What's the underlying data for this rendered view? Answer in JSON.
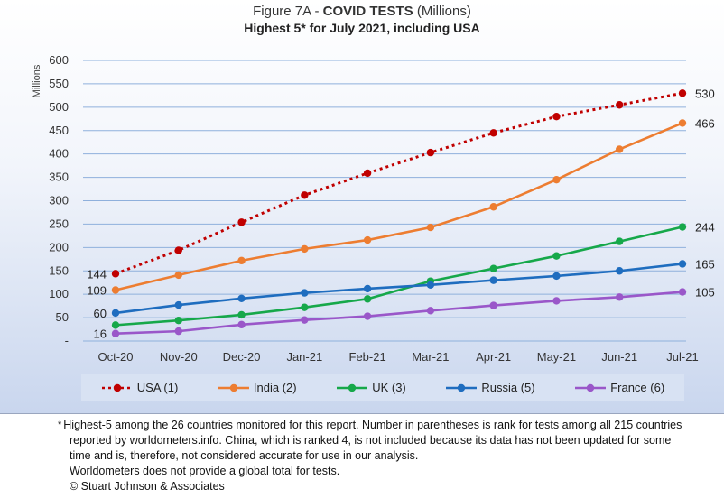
{
  "title": {
    "prefix": "Figure 7A - ",
    "main": "COVID TESTS",
    "suffix": " (Millions)",
    "subtitle": "Highest 5* for July 2021, including USA"
  },
  "chart_data": {
    "type": "line",
    "categories": [
      "Oct-20",
      "Nov-20",
      "Dec-20",
      "Jan-21",
      "Feb-21",
      "Mar-21",
      "Apr-21",
      "May-21",
      "Jun-21",
      "Jul-21"
    ],
    "ylabel": "Millions",
    "ylim": [
      0,
      600
    ],
    "yticks": [
      "-",
      "50",
      "100",
      "150",
      "200",
      "250",
      "300",
      "350",
      "400",
      "450",
      "500",
      "550",
      "600"
    ],
    "grid": true,
    "legend_position": "bottom",
    "series": [
      {
        "name": "USA (1)",
        "color": "#c00000",
        "dashed": true,
        "values": [
          144,
          194,
          254,
          312,
          359,
          403,
          445,
          480,
          505,
          530
        ],
        "labels": {
          "start": "144",
          "end": "530"
        }
      },
      {
        "name": "India (2)",
        "color": "#ed7d31",
        "dashed": false,
        "values": [
          109,
          141,
          172,
          197,
          216,
          243,
          287,
          345,
          410,
          466
        ],
        "labels": {
          "start": "109",
          "end": "466"
        }
      },
      {
        "name": "UK (3)",
        "color": "#16a84a",
        "dashed": false,
        "values": [
          34,
          44,
          56,
          72,
          90,
          128,
          155,
          182,
          213,
          244
        ],
        "labels": {
          "start": "",
          "end": "244"
        }
      },
      {
        "name": "Russia (5)",
        "color": "#1f6dbf",
        "dashed": false,
        "values": [
          60,
          77,
          91,
          103,
          112,
          120,
          130,
          139,
          150,
          165
        ],
        "labels": {
          "start": "60",
          "end": "165"
        }
      },
      {
        "name": "France (6)",
        "color": "#9a57c9",
        "dashed": false,
        "values": [
          16,
          21,
          35,
          45,
          53,
          65,
          76,
          86,
          94,
          105
        ],
        "labels": {
          "start": "16",
          "end": "105"
        }
      }
    ]
  },
  "footnote": {
    "star": "*",
    "line1": "Highest-5 among the 26 countries monitored for this report. Number in parentheses is rank for tests among all 215  countries",
    "line2": "reported by worldometers.info. China, which is ranked 4, is not included because its data has not been updated for some",
    "line3": "time and is, therefore, not considered accurate for use in our analysis.",
    "line4": "Worldometers does not provide a global total for tests.",
    "line5": "© Stuart Johnson & Associates"
  }
}
